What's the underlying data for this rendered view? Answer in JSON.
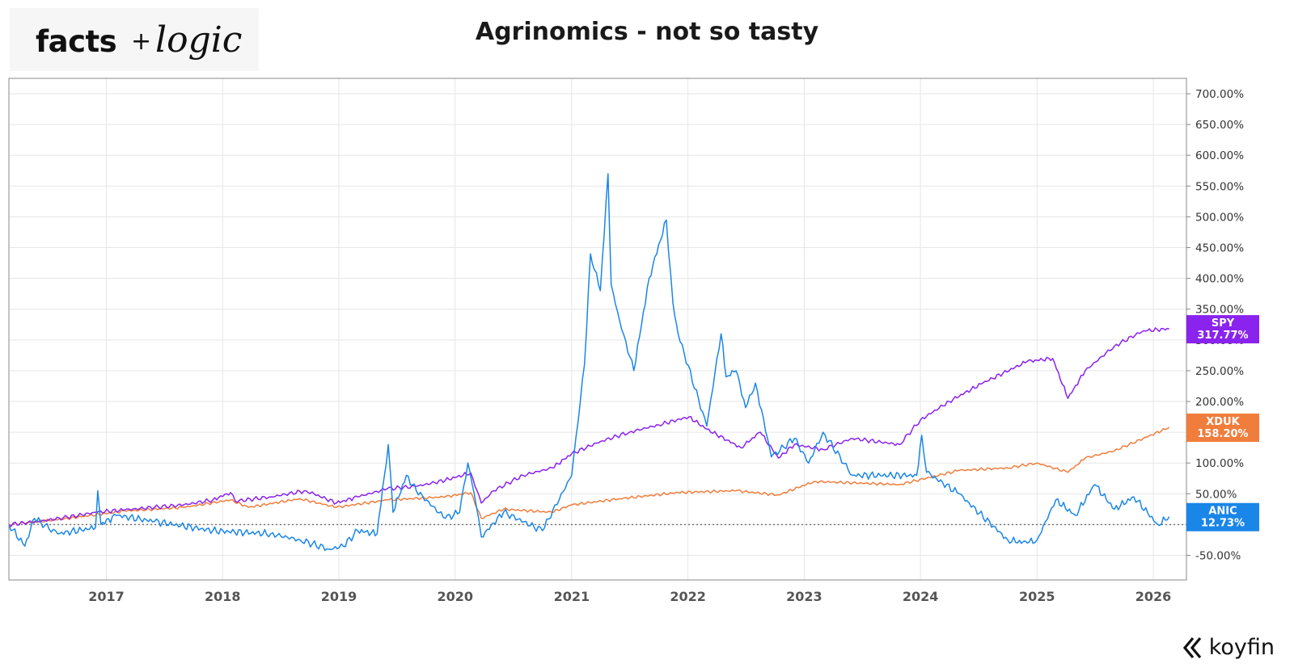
{
  "header": {
    "brand_bold": "facts",
    "brand_plus": "+",
    "brand_script": "logic",
    "title": "Agrinomics - not so tasty"
  },
  "footer": {
    "provider": "koyfin",
    "provider_icon": "koyfin-logo-icon"
  },
  "chart_data": {
    "type": "line",
    "title": "Agrinomics - not so tasty",
    "x_axis": {
      "type": "date",
      "min": "2016-03-01",
      "max": "2026-04-15",
      "ticks": [
        "2017",
        "2018",
        "2019",
        "2020",
        "2021",
        "2022",
        "2023",
        "2024",
        "2025",
        "2026"
      ]
    },
    "y_axis": {
      "unit": "%",
      "min": -90,
      "max": 725,
      "side": "right",
      "ticks": [
        "700.00%",
        "650.00%",
        "600.00%",
        "550.00%",
        "500.00%",
        "450.00%",
        "400.00%",
        "350.00%",
        "300.00%",
        "250.00%",
        "200.00%",
        "150.00%",
        "100.00%",
        "50.00%",
        "0.00%",
        "-50.00%"
      ]
    },
    "grid": true,
    "zero_line": "dotted",
    "series": [
      {
        "name": "SPY",
        "color": "#8a23ee",
        "last_label": "317.77%",
        "points": [
          [
            "2016-03-01",
            0
          ],
          [
            "2016-06-01",
            5
          ],
          [
            "2016-09-01",
            12
          ],
          [
            "2016-12-01",
            20
          ],
          [
            "2017-03-01",
            24
          ],
          [
            "2017-06-01",
            28
          ],
          [
            "2017-09-01",
            32
          ],
          [
            "2017-12-01",
            40
          ],
          [
            "2018-01-26",
            52
          ],
          [
            "2018-02-10",
            38
          ],
          [
            "2018-06-01",
            45
          ],
          [
            "2018-09-20",
            55
          ],
          [
            "2018-12-24",
            35
          ],
          [
            "2019-03-01",
            45
          ],
          [
            "2019-06-01",
            58
          ],
          [
            "2019-09-01",
            62
          ],
          [
            "2019-12-01",
            72
          ],
          [
            "2020-02-19",
            84
          ],
          [
            "2020-03-23",
            35
          ],
          [
            "2020-05-01",
            55
          ],
          [
            "2020-08-01",
            80
          ],
          [
            "2020-11-01",
            92
          ],
          [
            "2021-01-01",
            115
          ],
          [
            "2021-04-01",
            135
          ],
          [
            "2021-07-01",
            150
          ],
          [
            "2021-10-01",
            162
          ],
          [
            "2022-01-04",
            175
          ],
          [
            "2022-03-01",
            155
          ],
          [
            "2022-06-16",
            125
          ],
          [
            "2022-08-16",
            150
          ],
          [
            "2022-10-12",
            108
          ],
          [
            "2022-12-01",
            130
          ],
          [
            "2023-03-01",
            122
          ],
          [
            "2023-06-01",
            140
          ],
          [
            "2023-10-27",
            130
          ],
          [
            "2024-01-01",
            170
          ],
          [
            "2024-03-31",
            200
          ],
          [
            "2024-07-15",
            230
          ],
          [
            "2024-12-01",
            265
          ],
          [
            "2025-02-19",
            270
          ],
          [
            "2025-04-08",
            205
          ],
          [
            "2025-06-01",
            250
          ],
          [
            "2025-09-01",
            290
          ],
          [
            "2025-12-01",
            315
          ],
          [
            "2026-02-20",
            318
          ]
        ]
      },
      {
        "name": "XDUK",
        "color": "#f07d3c",
        "last_label": "158.20%",
        "points": [
          [
            "2016-03-01",
            0
          ],
          [
            "2016-09-01",
            10
          ],
          [
            "2017-03-01",
            22
          ],
          [
            "2017-09-01",
            28
          ],
          [
            "2018-01-26",
            40
          ],
          [
            "2018-03-23",
            28
          ],
          [
            "2018-09-01",
            42
          ],
          [
            "2018-12-24",
            28
          ],
          [
            "2019-06-01",
            40
          ],
          [
            "2019-12-01",
            45
          ],
          [
            "2020-02-19",
            52
          ],
          [
            "2020-03-23",
            10
          ],
          [
            "2020-06-01",
            25
          ],
          [
            "2020-10-30",
            20
          ],
          [
            "2021-01-01",
            32
          ],
          [
            "2021-06-01",
            42
          ],
          [
            "2021-12-01",
            52
          ],
          [
            "2022-06-01",
            55
          ],
          [
            "2022-10-12",
            48
          ],
          [
            "2023-02-01",
            70
          ],
          [
            "2023-10-27",
            65
          ],
          [
            "2024-05-01",
            88
          ],
          [
            "2024-10-01",
            92
          ],
          [
            "2025-01-01",
            100
          ],
          [
            "2025-04-08",
            85
          ],
          [
            "2025-06-01",
            108
          ],
          [
            "2025-09-01",
            120
          ],
          [
            "2025-12-01",
            140
          ],
          [
            "2026-02-20",
            158
          ]
        ]
      },
      {
        "name": "ANIC",
        "color": "#1a86e8",
        "last_label": "12.73%",
        "points": [
          [
            "2016-03-01",
            0
          ],
          [
            "2016-04-20",
            -35
          ],
          [
            "2016-05-20",
            10
          ],
          [
            "2016-08-01",
            -15
          ],
          [
            "2016-11-28",
            -5
          ],
          [
            "2016-12-05",
            55
          ],
          [
            "2016-12-15",
            0
          ],
          [
            "2017-02-01",
            15
          ],
          [
            "2017-06-01",
            5
          ],
          [
            "2017-12-01",
            -10
          ],
          [
            "2018-06-01",
            -15
          ],
          [
            "2018-09-01",
            -25
          ],
          [
            "2018-12-01",
            -40
          ],
          [
            "2019-01-15",
            -35
          ],
          [
            "2019-03-01",
            -10
          ],
          [
            "2019-05-01",
            -15
          ],
          [
            "2019-06-05",
            130
          ],
          [
            "2019-06-20",
            20
          ],
          [
            "2019-08-01",
            80
          ],
          [
            "2019-09-01",
            55
          ],
          [
            "2019-12-01",
            10
          ],
          [
            "2020-01-15",
            20
          ],
          [
            "2020-02-10",
            100
          ],
          [
            "2020-03-01",
            50
          ],
          [
            "2020-03-23",
            -20
          ],
          [
            "2020-06-01",
            20
          ],
          [
            "2020-10-01",
            -10
          ],
          [
            "2021-01-01",
            80
          ],
          [
            "2021-02-10",
            260
          ],
          [
            "2021-03-01",
            440
          ],
          [
            "2021-04-01",
            380
          ],
          [
            "2021-04-25",
            570
          ],
          [
            "2021-05-05",
            390
          ],
          [
            "2021-06-01",
            330
          ],
          [
            "2021-07-15",
            250
          ],
          [
            "2021-09-01",
            400
          ],
          [
            "2021-10-25",
            495
          ],
          [
            "2021-11-15",
            360
          ],
          [
            "2021-12-01",
            310
          ],
          [
            "2022-03-01",
            160
          ],
          [
            "2022-04-15",
            310
          ],
          [
            "2022-05-01",
            240
          ],
          [
            "2022-06-01",
            250
          ],
          [
            "2022-07-01",
            190
          ],
          [
            "2022-08-01",
            230
          ],
          [
            "2022-09-20",
            110
          ],
          [
            "2022-12-01",
            140
          ],
          [
            "2023-01-15",
            100
          ],
          [
            "2023-03-01",
            150
          ],
          [
            "2023-06-01",
            80
          ],
          [
            "2023-12-20",
            80
          ],
          [
            "2024-01-05",
            145
          ],
          [
            "2024-01-20",
            85
          ],
          [
            "2024-05-01",
            50
          ],
          [
            "2024-10-01",
            -25
          ],
          [
            "2024-12-01",
            -30
          ],
          [
            "2025-01-01",
            -25
          ],
          [
            "2025-03-01",
            40
          ],
          [
            "2025-05-01",
            15
          ],
          [
            "2025-07-01",
            65
          ],
          [
            "2025-09-01",
            25
          ],
          [
            "2025-11-01",
            45
          ],
          [
            "2026-01-15",
            0
          ],
          [
            "2026-02-20",
            12.73
          ]
        ]
      }
    ]
  }
}
